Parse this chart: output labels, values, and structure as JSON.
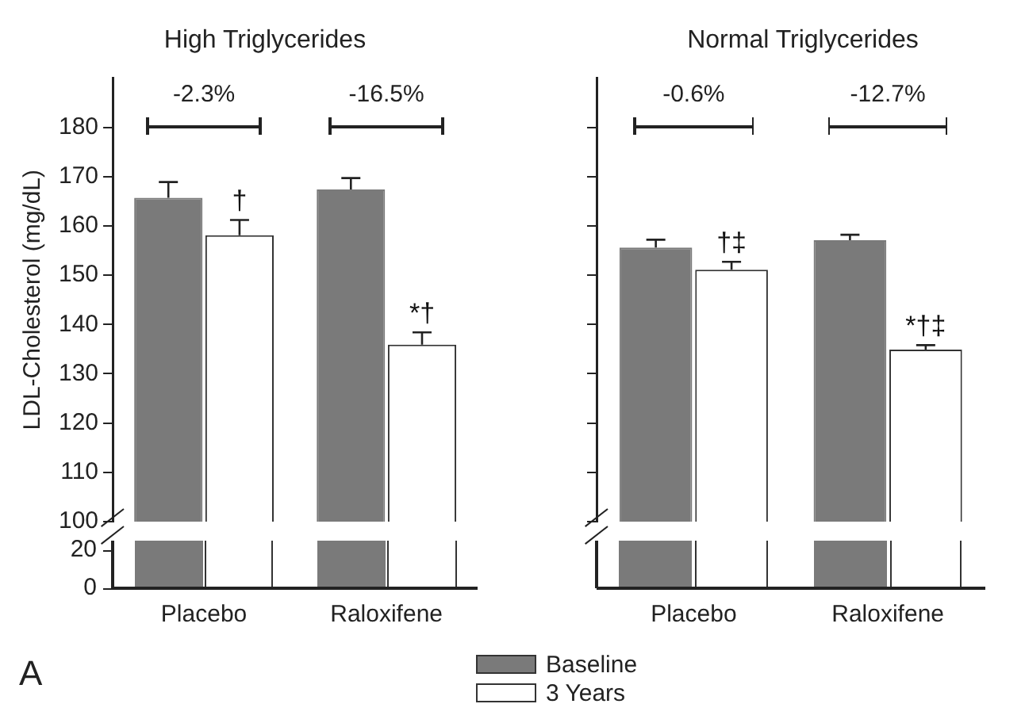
{
  "chart_data": [
    {
      "type": "bar",
      "title": "High Triglycerides",
      "ylabel": "LDL-Cholesterol (mg/dL)",
      "categories": [
        "Placebo",
        "Raloxifene"
      ],
      "series": [
        {
          "name": "Baseline",
          "color": "#7a7a7a",
          "values": [
            165.7,
            167.4
          ],
          "errors": [
            [
              165.7,
              168.9
            ],
            [
              167.4,
              169.7
            ]
          ]
        },
        {
          "name": "3 Years",
          "color": "#ffffff",
          "values": [
            158.1,
            135.9
          ],
          "errors": [
            [
              158.1,
              161.2
            ],
            [
              135.9,
              138.4
            ]
          ],
          "value_labels": [
            "†",
            "*†"
          ]
        }
      ],
      "ylim": [
        100,
        190
      ],
      "yticks": [
        100,
        110,
        120,
        130,
        140,
        150,
        160,
        170,
        180
      ],
      "grid": false,
      "legend": "bottom",
      "annotations": [
        "-2.3%",
        "-16.5%",
        "A",
        "20",
        "0"
      ]
    },
    {
      "type": "bar",
      "title": "Normal Triglycerides",
      "categories": [
        "Placebo",
        "Raloxifene"
      ],
      "series": [
        {
          "color": "#7a7a7a",
          "values": [
            155.6,
            157.1
          ],
          "errors": [
            [
              155.6,
              157.2
            ],
            [
              157.1,
              158.2
            ]
          ]
        },
        {
          "color": "#ffffff",
          "values": [
            151.1,
            134.9
          ],
          "errors": [
            [
              151.1,
              152.7
            ],
            [
              134.9,
              135.8
            ]
          ],
          "value_labels": [
            "†‡",
            "*†‡"
          ]
        }
      ],
      "ylim": [
        100,
        190
      ],
      "yticks": [
        100,
        110,
        120,
        130,
        140,
        150,
        160,
        170,
        180
      ],
      "grid": false,
      "tick_labels": "x",
      "annotations": [
        "-0.6%",
        "-12.7%"
      ]
    }
  ]
}
